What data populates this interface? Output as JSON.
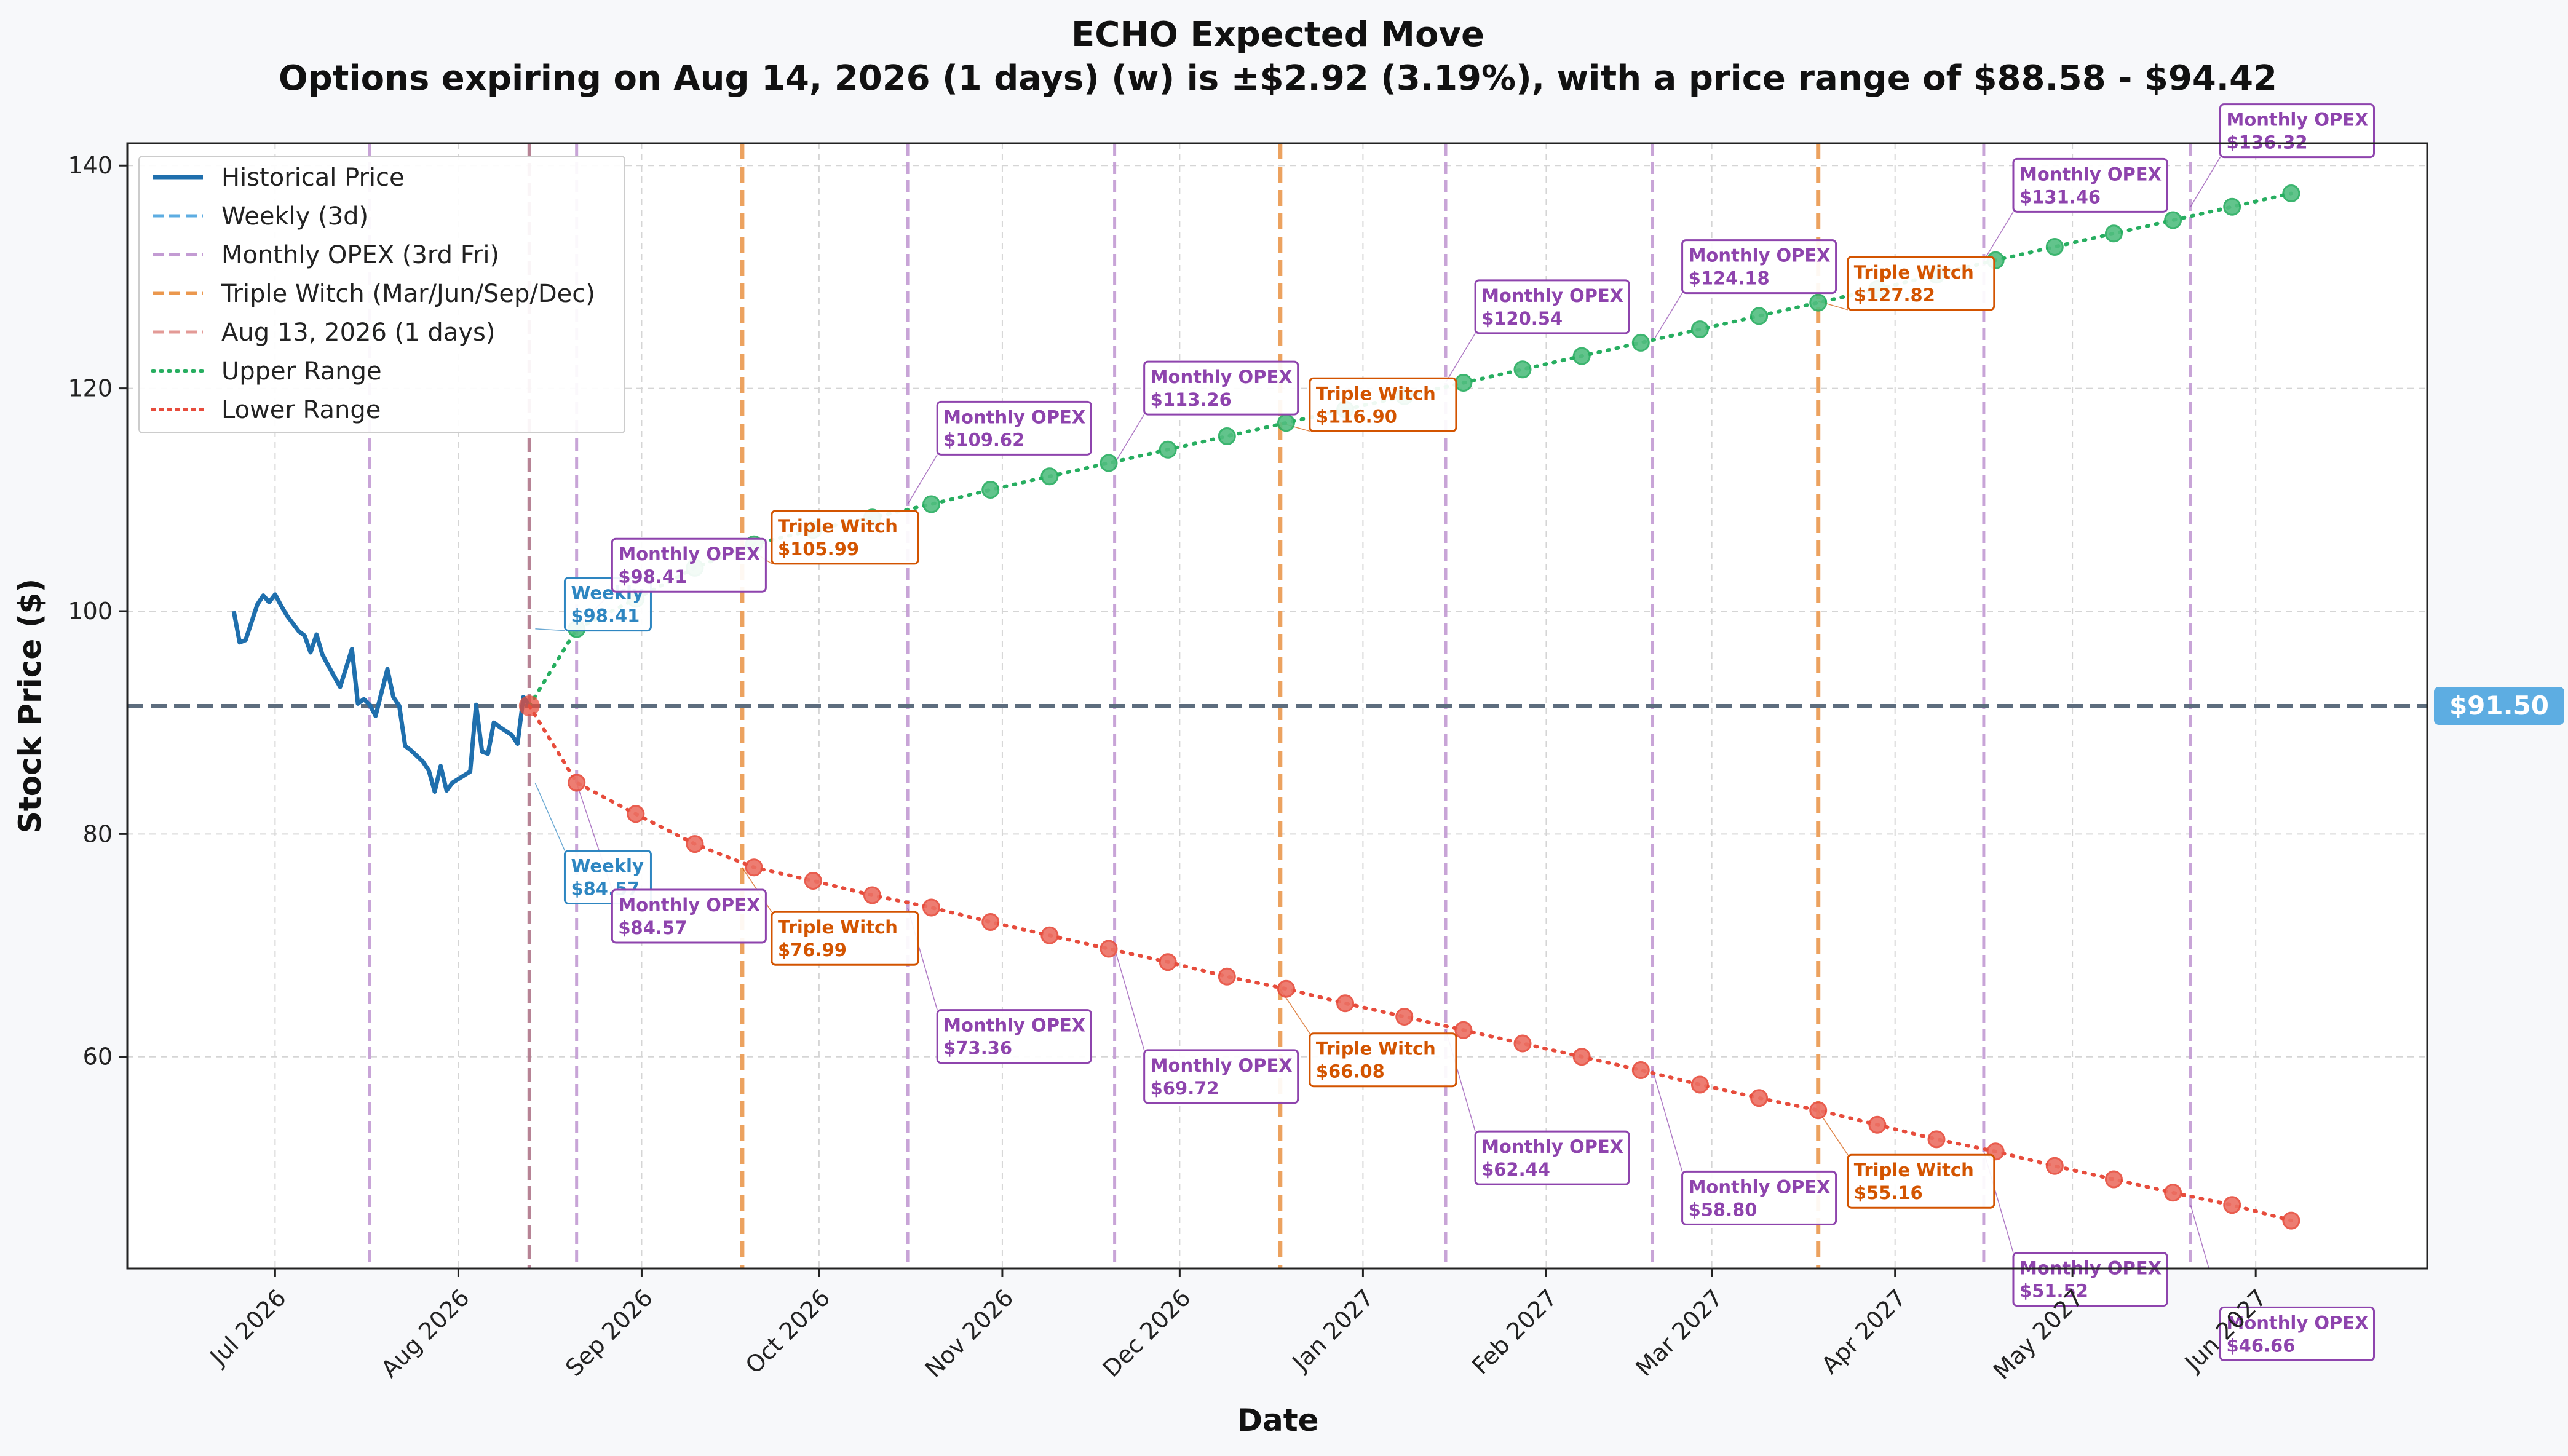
{
  "chart_data": {
    "type": "line",
    "title": "ECHO Expected Move",
    "subtitle": "Options expiring on Aug 14, 2026 (1 days) (w) is ±$2.92 (3.19%), with a price range of $88.58 - $94.42",
    "xlabel": "Date",
    "ylabel": "Stock Price ($)",
    "ylim": [
      41,
      142
    ],
    "xlim": [
      "2026-06-06",
      "2027-06-30"
    ],
    "yticks": [
      60,
      80,
      100,
      120,
      140
    ],
    "xticks": [
      {
        "date": "2026-07-01",
        "label": "Jul 2026"
      },
      {
        "date": "2026-08-01",
        "label": "Aug 2026"
      },
      {
        "date": "2026-09-01",
        "label": "Sep 2026"
      },
      {
        "date": "2026-10-01",
        "label": "Oct 2026"
      },
      {
        "date": "2026-11-01",
        "label": "Nov 2026"
      },
      {
        "date": "2026-12-01",
        "label": "Dec 2026"
      },
      {
        "date": "2027-01-01",
        "label": "Jan 2027"
      },
      {
        "date": "2027-02-01",
        "label": "Feb 2027"
      },
      {
        "date": "2027-03-01",
        "label": "Mar 2027"
      },
      {
        "date": "2027-04-01",
        "label": "Apr 2027"
      },
      {
        "date": "2027-05-01",
        "label": "May 2027"
      },
      {
        "date": "2027-06-01",
        "label": "Jun 2027"
      }
    ],
    "grid": true,
    "legend_position": "top-left",
    "current_price": 91.5,
    "current_price_label": "$91.50",
    "series": [
      {
        "name": "Historical Price",
        "color": "#1f6fad",
        "style": "solid",
        "x": [
          "2026-06-24",
          "2026-06-25",
          "2026-06-26",
          "2026-06-27",
          "2026-06-28",
          "2026-06-29",
          "2026-06-30",
          "2026-07-01",
          "2026-07-02",
          "2026-07-03",
          "2026-07-05",
          "2026-07-06",
          "2026-07-07",
          "2026-07-08",
          "2026-07-09",
          "2026-07-10",
          "2026-07-12",
          "2026-07-13",
          "2026-07-14",
          "2026-07-15",
          "2026-07-16",
          "2026-07-17",
          "2026-07-18",
          "2026-07-20",
          "2026-07-21",
          "2026-07-22",
          "2026-07-23",
          "2026-07-24",
          "2026-07-26",
          "2026-07-27",
          "2026-07-28",
          "2026-07-29",
          "2026-07-30",
          "2026-07-31",
          "2026-08-03",
          "2026-08-04",
          "2026-08-05",
          "2026-08-06",
          "2026-08-07",
          "2026-08-08",
          "2026-08-10",
          "2026-08-11",
          "2026-08-12",
          "2026-08-13"
        ],
        "y": [
          100.0,
          97.2,
          97.4,
          99.0,
          100.6,
          101.4,
          100.8,
          101.5,
          100.5,
          99.6,
          98.2,
          97.8,
          96.3,
          97.9,
          96.1,
          95.1,
          93.2,
          94.9,
          96.6,
          91.7,
          92.1,
          91.6,
          90.6,
          94.8,
          92.3,
          91.5,
          87.9,
          87.5,
          86.5,
          85.7,
          83.8,
          86.1,
          83.9,
          84.6,
          85.6,
          91.6,
          87.4,
          87.2,
          90.0,
          89.6,
          88.9,
          88.1,
          92.3,
          91.5
        ]
      },
      {
        "name": "Weekly (3d)",
        "color": "#5dade2",
        "style": "dashed"
      },
      {
        "name": "Monthly OPEX (3rd Fri)",
        "color": "#c39bd3",
        "style": "dashed"
      },
      {
        "name": "Triple Witch (Mar/Jun/Sep/Dec)",
        "color": "#eb984e",
        "style": "dashed"
      },
      {
        "name": "Aug 13, 2026 (1 days)",
        "color": "#e74c3c",
        "style": "dashed"
      },
      {
        "name": "Upper Range",
        "color": "#27ae60",
        "style": "dotted",
        "x": [
          "2026-08-13",
          "2026-08-21",
          "2026-08-31",
          "2026-09-10",
          "2026-09-20",
          "2026-09-30",
          "2026-10-10",
          "2026-10-20",
          "2026-10-30",
          "2026-11-09",
          "2026-11-19",
          "2026-11-29",
          "2026-12-09",
          "2026-12-19",
          "2026-12-29",
          "2027-01-08",
          "2027-01-18",
          "2027-01-28",
          "2027-02-07",
          "2027-02-17",
          "2027-02-27",
          "2027-03-09",
          "2027-03-19",
          "2027-03-29",
          "2027-04-08",
          "2027-04-18",
          "2027-04-28",
          "2027-05-08",
          "2027-05-18",
          "2027-05-28",
          "2027-06-07"
        ],
        "y": [
          91.5,
          98.4,
          101.1,
          103.9,
          106.0,
          107.3,
          108.4,
          109.6,
          110.9,
          112.1,
          113.3,
          114.5,
          115.7,
          116.9,
          118.1,
          119.3,
          120.5,
          121.7,
          122.9,
          124.1,
          125.3,
          126.5,
          127.7,
          128.9,
          130.2,
          131.5,
          132.7,
          133.9,
          135.1,
          136.3,
          137.5
        ]
      },
      {
        "name": "Lower Range",
        "color": "#e74c3c",
        "style": "dotted",
        "x": [
          "2026-08-13",
          "2026-08-21",
          "2026-08-31",
          "2026-09-10",
          "2026-09-20",
          "2026-09-30",
          "2026-10-10",
          "2026-10-20",
          "2026-10-30",
          "2026-11-09",
          "2026-11-19",
          "2026-11-29",
          "2026-12-09",
          "2026-12-19",
          "2026-12-29",
          "2027-01-08",
          "2027-01-18",
          "2027-01-28",
          "2027-02-07",
          "2027-02-17",
          "2027-02-27",
          "2027-03-09",
          "2027-03-19",
          "2027-03-29",
          "2027-04-08",
          "2027-04-18",
          "2027-04-28",
          "2027-05-08",
          "2027-05-18",
          "2027-05-28",
          "2027-06-07"
        ],
        "y": [
          91.5,
          84.6,
          81.8,
          79.1,
          77.0,
          75.8,
          74.5,
          73.4,
          72.1,
          70.9,
          69.7,
          68.5,
          67.2,
          66.1,
          64.8,
          63.6,
          62.4,
          61.2,
          60.0,
          58.8,
          57.5,
          56.3,
          55.2,
          53.9,
          52.6,
          51.5,
          50.2,
          49.0,
          47.8,
          46.7,
          45.3
        ]
      }
    ],
    "vlines": [
      {
        "date": "2026-07-17",
        "kind": "monthly"
      },
      {
        "date": "2026-08-13",
        "kind": "today"
      },
      {
        "date": "2026-08-21",
        "kind": "monthly"
      },
      {
        "date": "2026-09-18",
        "kind": "triple"
      },
      {
        "date": "2026-10-16",
        "kind": "monthly"
      },
      {
        "date": "2026-11-20",
        "kind": "monthly"
      },
      {
        "date": "2026-12-18",
        "kind": "triple"
      },
      {
        "date": "2027-01-15",
        "kind": "monthly"
      },
      {
        "date": "2027-02-19",
        "kind": "monthly"
      },
      {
        "date": "2027-03-19",
        "kind": "triple"
      },
      {
        "date": "2027-04-16",
        "kind": "monthly"
      },
      {
        "date": "2027-05-21",
        "kind": "monthly"
      }
    ],
    "annotations": [
      {
        "kind": "weekly",
        "name": "Weekly",
        "value": "$98.41",
        "date": "2026-08-14",
        "y": 98.41,
        "label_date": "2026-08-19",
        "label_y": 103.0
      },
      {
        "kind": "weekly",
        "name": "Weekly",
        "value": "$84.57",
        "date": "2026-08-14",
        "y": 84.57,
        "label_date": "2026-08-19",
        "label_y": 78.5
      },
      {
        "kind": "monthly",
        "name": "Monthly OPEX",
        "value": "$98.41",
        "date": "2026-08-21",
        "y": 98.41,
        "label_date": "2026-08-27",
        "label_y": 106.5
      },
      {
        "kind": "monthly",
        "name": "Monthly OPEX",
        "value": "$84.57",
        "date": "2026-08-21",
        "y": 84.57,
        "label_date": "2026-08-27",
        "label_y": 75.0
      },
      {
        "kind": "triple",
        "name": "Triple Witch",
        "value": "$105.99",
        "date": "2026-09-18",
        "y": 105.99,
        "label_date": "2026-09-23",
        "label_y": 109.0
      },
      {
        "kind": "triple",
        "name": "Triple Witch",
        "value": "$76.99",
        "date": "2026-09-18",
        "y": 76.99,
        "label_date": "2026-09-23",
        "label_y": 73.0
      },
      {
        "kind": "monthly",
        "name": "Monthly OPEX",
        "value": "$109.62",
        "date": "2026-10-16",
        "y": 109.62,
        "label_date": "2026-10-21",
        "label_y": 118.8
      },
      {
        "kind": "monthly",
        "name": "Monthly OPEX",
        "value": "$73.36",
        "date": "2026-10-16",
        "y": 73.36,
        "label_date": "2026-10-21",
        "label_y": 64.2
      },
      {
        "kind": "monthly",
        "name": "Monthly OPEX",
        "value": "$113.26",
        "date": "2026-11-20",
        "y": 113.26,
        "label_date": "2026-11-25",
        "label_y": 122.4
      },
      {
        "kind": "monthly",
        "name": "Monthly OPEX",
        "value": "$69.72",
        "date": "2026-11-20",
        "y": 69.72,
        "label_date": "2026-11-25",
        "label_y": 60.6
      },
      {
        "kind": "triple",
        "name": "Triple Witch",
        "value": "$116.90",
        "date": "2026-12-18",
        "y": 116.9,
        "label_date": "2026-12-23",
        "label_y": 120.9
      },
      {
        "kind": "triple",
        "name": "Triple Witch",
        "value": "$66.08",
        "date": "2026-12-18",
        "y": 66.08,
        "label_date": "2026-12-23",
        "label_y": 62.1
      },
      {
        "kind": "monthly",
        "name": "Monthly OPEX",
        "value": "$120.54",
        "date": "2027-01-15",
        "y": 120.54,
        "label_date": "2027-01-20",
        "label_y": 129.7
      },
      {
        "kind": "monthly",
        "name": "Monthly OPEX",
        "value": "$62.44",
        "date": "2027-01-15",
        "y": 62.44,
        "label_date": "2027-01-20",
        "label_y": 53.3
      },
      {
        "kind": "monthly",
        "name": "Monthly OPEX",
        "value": "$124.18",
        "date": "2027-02-19",
        "y": 124.18,
        "label_date": "2027-02-24",
        "label_y": 133.3
      },
      {
        "kind": "monthly",
        "name": "Monthly OPEX",
        "value": "$58.80",
        "date": "2027-02-19",
        "y": 58.8,
        "label_date": "2027-02-24",
        "label_y": 49.7
      },
      {
        "kind": "triple",
        "name": "Triple Witch",
        "value": "$127.82",
        "date": "2027-03-19",
        "y": 127.82,
        "label_date": "2027-03-24",
        "label_y": 131.8
      },
      {
        "kind": "triple",
        "name": "Triple Witch",
        "value": "$55.16",
        "date": "2027-03-19",
        "y": 55.16,
        "label_date": "2027-03-24",
        "label_y": 51.2
      },
      {
        "kind": "monthly",
        "name": "Monthly OPEX",
        "value": "$131.46",
        "date": "2027-04-16",
        "y": 131.46,
        "label_date": "2027-04-21",
        "label_y": 140.6
      },
      {
        "kind": "monthly",
        "name": "Monthly OPEX",
        "value": "$51.52",
        "date": "2027-04-16",
        "y": 51.52,
        "label_date": "2027-04-21",
        "label_y": 42.4
      },
      {
        "kind": "monthly",
        "name": "Monthly OPEX",
        "value": "$136.32",
        "date": "2027-05-21",
        "y": 136.32,
        "label_date": "2027-05-26",
        "label_y": 145.5
      },
      {
        "kind": "monthly",
        "name": "Monthly OPEX",
        "value": "$46.66",
        "date": "2027-05-21",
        "y": 46.66,
        "label_date": "2027-05-26",
        "label_y": 37.5
      }
    ]
  },
  "colors": {
    "weekly": "#2e86c1",
    "monthly": "#8e44ad",
    "triple": "#d35400",
    "monthly_line": "#c39bd3",
    "triple_line": "#eb984e",
    "today_line": "#b0768a",
    "current_line": "#5d6d7e",
    "current_badge": "#5dade2",
    "upper_marker": "#52be80",
    "lower_marker": "#ec7063"
  }
}
